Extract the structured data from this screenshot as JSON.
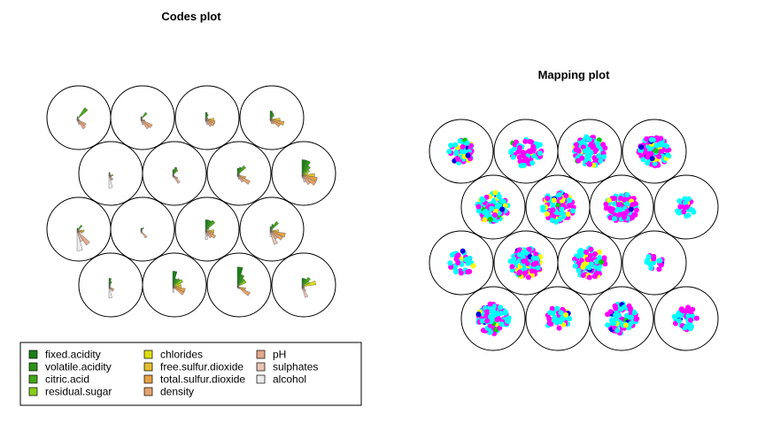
{
  "chart_data": [
    {
      "type": "som-codes",
      "title": "Codes plot",
      "grid": {
        "rows": 4,
        "cols": 4,
        "topology": "hexagonal"
      },
      "variables": [
        {
          "name": "fixed.acidity",
          "color": "#1b7e14"
        },
        {
          "name": "volatile.acidity",
          "color": "#2b9418"
        },
        {
          "name": "citric.acid",
          "color": "#43a818"
        },
        {
          "name": "residual.sugar",
          "color": "#86cc1c"
        },
        {
          "name": "chlorides",
          "color": "#dede10"
        },
        {
          "name": "free.sulfur.dioxide",
          "color": "#e3be2e"
        },
        {
          "name": "total.sulfur.dioxide",
          "color": "#e4a248"
        },
        {
          "name": "density",
          "color": "#e3a26c"
        },
        {
          "name": "pH",
          "color": "#e3a88e"
        },
        {
          "name": "sulphates",
          "color": "#e8c4b4"
        },
        {
          "name": "alcohol",
          "color": "#ececec"
        }
      ],
      "units": [
        [
          0.1,
          0.05,
          0.5,
          0.05,
          0.05,
          0.05,
          0.1,
          0.35,
          0.4,
          0.2,
          0.05
        ],
        [
          0.1,
          0.1,
          0.3,
          0.05,
          0.05,
          0.05,
          0.15,
          0.45,
          0.4,
          0.2,
          0.05
        ],
        [
          0.25,
          0.2,
          0.1,
          0.1,
          0.05,
          0.3,
          0.35,
          0.35,
          0.3,
          0.2,
          0.1
        ],
        [
          0.3,
          0.25,
          0.2,
          0.1,
          0.05,
          0.35,
          0.5,
          0.4,
          0.2,
          0.15,
          0.05
        ],
        [
          0.1,
          0.1,
          0.05,
          0.05,
          0.05,
          0.15,
          0.1,
          0.1,
          0.2,
          0.2,
          0.45
        ],
        [
          0.2,
          0.3,
          0.25,
          0.05,
          0.05,
          0.05,
          0.05,
          0.2,
          0.35,
          0.1,
          0.05
        ],
        [
          0.25,
          0.3,
          0.4,
          0.1,
          0.05,
          0.1,
          0.3,
          0.5,
          0.3,
          0.15,
          0.05
        ],
        [
          0.55,
          0.55,
          0.4,
          0.3,
          0.2,
          0.45,
          0.55,
          0.55,
          0.4,
          0.25,
          0.1
        ],
        [
          0.1,
          0.1,
          0.25,
          0.1,
          0.05,
          0.25,
          0.2,
          0.1,
          0.6,
          0.4,
          0.7
        ],
        [
          0.1,
          0.1,
          0.15,
          0.05,
          0.05,
          0.05,
          0.05,
          0.05,
          0.3,
          0.1,
          0.05
        ],
        [
          0.4,
          0.4,
          0.45,
          0.15,
          0.05,
          0.3,
          0.3,
          0.4,
          0.3,
          0.2,
          0.3
        ],
        [
          0.15,
          0.25,
          0.4,
          0.1,
          0.05,
          0.3,
          0.55,
          0.5,
          0.35,
          0.5,
          0.2
        ],
        [
          0.3,
          0.2,
          0.1,
          0.05,
          0.05,
          0.05,
          0.05,
          0.2,
          0.2,
          0.1,
          0.4
        ],
        [
          0.55,
          0.3,
          0.35,
          0.4,
          0.3,
          0.3,
          0.45,
          0.45,
          0.1,
          0.05,
          0.2
        ],
        [
          0.7,
          0.45,
          0.35,
          0.35,
          0.05,
          0.05,
          0.3,
          0.5,
          0.1,
          0.05,
          0.05
        ],
        [
          0.3,
          0.3,
          0.4,
          0.3,
          0.5,
          0.05,
          0.1,
          0.1,
          0.2,
          0.4,
          0.1
        ]
      ],
      "legend_position": "bottom"
    },
    {
      "type": "som-mapping",
      "title": "Mapping plot",
      "grid": {
        "rows": 4,
        "cols": 4,
        "topology": "hexagonal"
      },
      "point_colors": [
        "#00ffff",
        "#ff00ff",
        "#ffff00",
        "#0000dd",
        "#00cc00"
      ],
      "point_counts": [
        60,
        70,
        110,
        110,
        100,
        100,
        100,
        30,
        40,
        120,
        90,
        20,
        100,
        50,
        90,
        40
      ]
    }
  ]
}
